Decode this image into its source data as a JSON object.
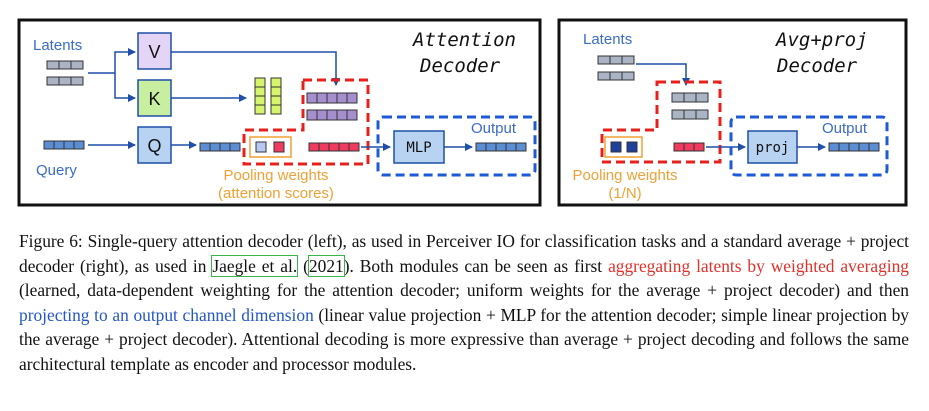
{
  "left_panel": {
    "title_line1": "Attention",
    "title_line2": "Decoder",
    "latents_label": "Latents",
    "query_label": "Query",
    "v_label": "V",
    "k_label": "K",
    "q_label": "Q",
    "mlp_label": "MLP",
    "output_label": "Output",
    "pooling_line1": "Pooling weights",
    "pooling_line2": "(attention scores)"
  },
  "right_panel": {
    "title_line1": "Avg+proj",
    "title_line2": "Decoder",
    "latents_label": "Latents",
    "proj_label": "proj",
    "output_label": "Output",
    "pooling_line1": "Pooling weights",
    "pooling_line2": "(1/N)"
  },
  "colors": {
    "label_blue": "#3a6bc9",
    "pool_orange": "#f0a034",
    "red_dashed": "#e8201c",
    "blue_dashed": "#1f5ad6",
    "v_fill": "#e4d4f6",
    "k_fill": "#c8eea0",
    "q_fill": "#b8d2f2",
    "cell_grey": "#aab4c4",
    "cell_blue": "#5c8ed4",
    "cell_green": "#d6f56c",
    "cell_purple": "#a68fce",
    "cell_red": "#f03a60"
  },
  "caption": {
    "p1": "Figure 6: Single-query attention decoder (left), as used in Perceiver IO for classification tasks and a standard average + project decoder (right), as used in ",
    "cite_author": "Jaegle et al.",
    "cite_open": " (",
    "cite_year": "2021",
    "p2": "). Both modules can be seen as first ",
    "red_text": "aggregating latents by weighted averaging",
    "p3": " (learned, data-dependent weighting for the attention decoder; uniform weights for the average + project decoder) and then ",
    "blue_text": "projecting to an output channel dimension",
    "p4": " (linear value projection + MLP for the attention decoder; simple linear projection by the average + project decoder). Attentional decoding is more expressive than average + project decoding and follows the same architectural template as encoder and processor modules."
  }
}
